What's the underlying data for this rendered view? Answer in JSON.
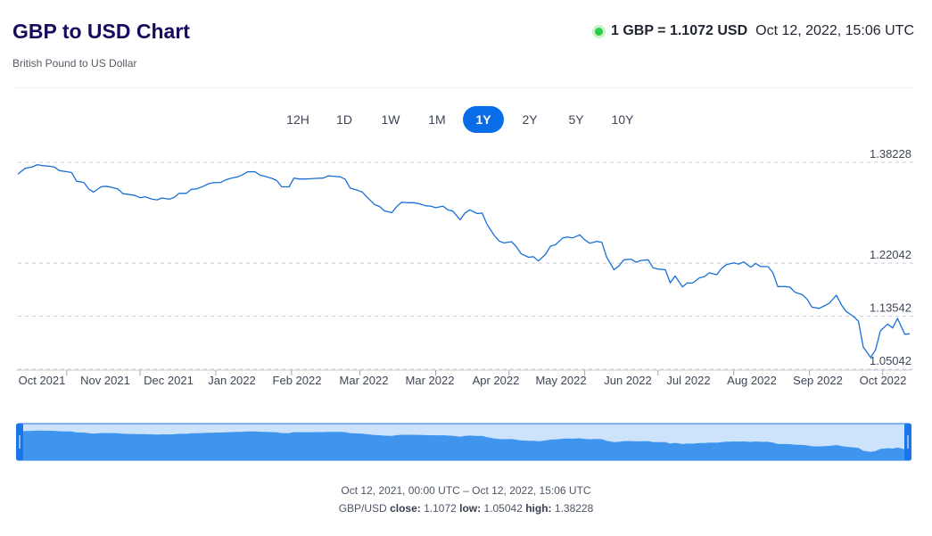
{
  "header": {
    "title": "GBP to USD Chart",
    "subtitle": "British Pound to US Dollar",
    "rate_text": "1 GBP = 1.1072 USD",
    "rate_time": "Oct 12, 2022, 15:06 UTC",
    "live_color": "#2ecc40"
  },
  "ranges": {
    "items": [
      "12H",
      "1D",
      "1W",
      "1M",
      "1Y",
      "2Y",
      "5Y",
      "10Y"
    ],
    "active": "1Y"
  },
  "colors": {
    "accent": "#0a6de8",
    "line": "#1a6fd6",
    "navigator_fill": "#3f95ee",
    "navigator_bg": "#cde3fb"
  },
  "chart_data": {
    "type": "line",
    "title": "",
    "xlabel": "",
    "ylabel": "",
    "x_tick_labels": [
      "Oct 2021",
      "Nov 2021",
      "Dec 2021",
      "Jan 2022",
      "Feb 2022",
      "Mar 2022",
      "Mar 2022",
      "Apr 2022",
      "May 2022",
      "Jun 2022",
      "Jul 2022",
      "Aug 2022",
      "Sep 2022",
      "Oct 2022"
    ],
    "y_ticks": [
      1.38228,
      1.22042,
      1.13542,
      1.05042
    ],
    "y_tick_labels": [
      "1.38228",
      "1.22042",
      "1.13542",
      "1.05042"
    ],
    "ylim": [
      1.05042,
      1.38228
    ],
    "xlim": [
      "2021-10-12",
      "2022-10-12"
    ],
    "grid": "horizontal-dashed",
    "legend": "none",
    "series": [
      {
        "x": [
          "2021-10-12",
          "2021-10-15",
          "2021-10-18",
          "2021-10-20",
          "2021-10-22",
          "2021-10-25",
          "2021-10-27",
          "2021-10-29",
          "2021-11-01",
          "2021-11-03",
          "2021-11-05",
          "2021-11-08",
          "2021-11-10",
          "2021-11-12",
          "2021-11-15",
          "2021-11-17",
          "2021-11-19",
          "2021-11-22",
          "2021-11-24",
          "2021-11-26",
          "2021-11-29",
          "2021-12-01",
          "2021-12-03",
          "2021-12-06",
          "2021-12-08",
          "2021-12-10",
          "2021-12-13",
          "2021-12-15",
          "2021-12-17",
          "2021-12-20",
          "2021-12-22",
          "2021-12-24",
          "2021-12-27",
          "2021-12-29",
          "2021-12-31",
          "2022-01-03",
          "2022-01-05",
          "2022-01-07",
          "2022-01-10",
          "2022-01-12",
          "2022-01-14",
          "2022-01-17",
          "2022-01-19",
          "2022-01-21",
          "2022-01-24",
          "2022-01-26",
          "2022-01-28",
          "2022-01-31",
          "2022-02-02",
          "2022-02-04",
          "2022-02-07",
          "2022-02-09",
          "2022-02-11",
          "2022-02-14",
          "2022-02-16",
          "2022-02-18",
          "2022-02-21",
          "2022-02-23",
          "2022-02-25",
          "2022-02-28",
          "2022-03-02",
          "2022-03-04",
          "2022-03-07",
          "2022-03-09",
          "2022-03-11",
          "2022-03-14",
          "2022-03-16",
          "2022-03-18",
          "2022-03-21",
          "2022-03-23",
          "2022-03-25",
          "2022-03-28",
          "2022-03-30",
          "2022-04-01",
          "2022-04-04",
          "2022-04-06",
          "2022-04-08",
          "2022-04-11",
          "2022-04-13",
          "2022-04-15",
          "2022-04-18",
          "2022-04-20",
          "2022-04-22",
          "2022-04-25",
          "2022-04-27",
          "2022-04-29",
          "2022-05-02",
          "2022-05-04",
          "2022-05-06",
          "2022-05-09",
          "2022-05-11",
          "2022-05-13",
          "2022-05-16",
          "2022-05-18",
          "2022-05-20",
          "2022-05-23",
          "2022-05-25",
          "2022-05-27",
          "2022-05-30",
          "2022-06-01",
          "2022-06-03",
          "2022-06-06",
          "2022-06-08",
          "2022-06-10",
          "2022-06-13",
          "2022-06-15",
          "2022-06-17",
          "2022-06-20",
          "2022-06-22",
          "2022-06-24",
          "2022-06-27",
          "2022-06-29",
          "2022-07-01",
          "2022-07-04",
          "2022-07-06",
          "2022-07-08",
          "2022-07-11",
          "2022-07-13",
          "2022-07-15",
          "2022-07-18",
          "2022-07-20",
          "2022-07-22",
          "2022-07-25",
          "2022-07-27",
          "2022-07-29",
          "2022-08-01",
          "2022-08-03",
          "2022-08-05",
          "2022-08-08",
          "2022-08-10",
          "2022-08-12",
          "2022-08-15",
          "2022-08-17",
          "2022-08-19",
          "2022-08-22",
          "2022-08-24",
          "2022-08-26",
          "2022-08-29",
          "2022-08-31",
          "2022-09-02",
          "2022-09-05",
          "2022-09-07",
          "2022-09-09",
          "2022-09-12",
          "2022-09-14",
          "2022-09-16",
          "2022-09-19",
          "2022-09-21",
          "2022-09-23",
          "2022-09-26",
          "2022-09-28",
          "2022-09-30",
          "2022-10-03",
          "2022-10-05",
          "2022-10-07",
          "2022-10-10",
          "2022-10-12"
        ],
        "values": [
          1.3635,
          1.3725,
          1.375,
          1.3785,
          1.377,
          1.376,
          1.3745,
          1.369,
          1.3672,
          1.3658,
          1.352,
          1.35,
          1.3395,
          1.3345,
          1.343,
          1.344,
          1.3425,
          1.3395,
          1.332,
          1.331,
          1.329,
          1.3255,
          1.327,
          1.323,
          1.322,
          1.325,
          1.323,
          1.326,
          1.3325,
          1.3325,
          1.339,
          1.3395,
          1.344,
          1.348,
          1.3495,
          1.35,
          1.354,
          1.3565,
          1.359,
          1.3625,
          1.367,
          1.3672,
          1.362,
          1.36,
          1.3565,
          1.353,
          1.343,
          1.343,
          1.357,
          1.3555,
          1.3556,
          1.356,
          1.3565,
          1.357,
          1.3605,
          1.36,
          1.359,
          1.355,
          1.341,
          1.3375,
          1.3345,
          1.326,
          1.3145,
          1.3115,
          1.3045,
          1.3015,
          1.311,
          1.318,
          1.3175,
          1.3175,
          1.316,
          1.3125,
          1.312,
          1.3095,
          1.312,
          1.306,
          1.304,
          1.29,
          1.301,
          1.306,
          1.3,
          1.301,
          1.283,
          1.265,
          1.256,
          1.253,
          1.255,
          1.247,
          1.2355,
          1.23,
          1.231,
          1.224,
          1.235,
          1.248,
          1.25,
          1.261,
          1.2625,
          1.261,
          1.266,
          1.258,
          1.2525,
          1.2555,
          1.254,
          1.23,
          1.21,
          1.216,
          1.226,
          1.227,
          1.222,
          1.225,
          1.226,
          1.213,
          1.211,
          1.21,
          1.189,
          1.2,
          1.1825,
          1.189,
          1.1885,
          1.197,
          1.199,
          1.205,
          1.202,
          1.212,
          1.218,
          1.221,
          1.219,
          1.2225,
          1.214,
          1.22,
          1.215,
          1.215,
          1.205,
          1.183,
          1.183,
          1.182,
          1.174,
          1.17,
          1.163,
          1.15,
          1.148,
          1.152,
          1.156,
          1.169,
          1.154,
          1.143,
          1.135,
          1.1275,
          1.086,
          1.0695,
          1.081,
          1.112,
          1.123,
          1.1165,
          1.132,
          1.1065,
          1.1072
        ]
      }
    ]
  },
  "footer": {
    "range_text": "Oct 12, 2021, 00:00 UTC – Oct 12, 2022, 15:06 UTC",
    "pair_label": "GBP/USD",
    "close_label": "close:",
    "close_value": "1.1072",
    "low_label": "low:",
    "low_value": "1.05042",
    "high_label": "high:",
    "high_value": "1.38228"
  }
}
